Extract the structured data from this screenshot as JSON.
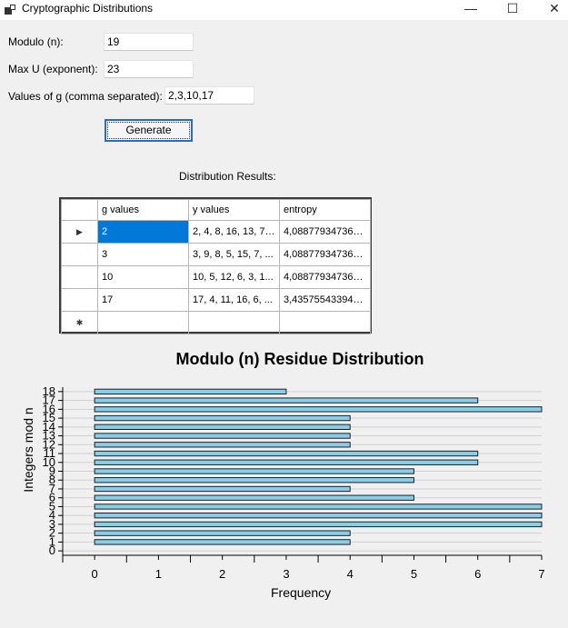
{
  "window": {
    "title": "Cryptographic Distributions",
    "minimize_glyph": "—",
    "maximize_glyph": "☐",
    "close_glyph": "✕"
  },
  "form": {
    "modulo_label": "Modulo (n):",
    "modulo_value": "19",
    "max_u_label": "Max U (exponent):",
    "max_u_value": "23",
    "g_label": "Values of g (comma separated):",
    "g_value": "2,3,10,17",
    "generate_label": "Generate",
    "results_label": "Distribution Results:"
  },
  "table": {
    "headers": [
      "g values",
      "y values",
      "entropy"
    ],
    "rows": [
      {
        "g": "2",
        "y": "2, 4, 8, 16, 13, 7,...",
        "entropy": "4,088779347361..."
      },
      {
        "g": "3",
        "y": "3, 9, 8, 5, 15, 7, ...",
        "entropy": "4,088779347361..."
      },
      {
        "g": "10",
        "y": "10, 5, 12, 6, 3, 1...",
        "entropy": "4,088779347361..."
      },
      {
        "g": "17",
        "y": "17, 4, 11, 16, 6, ...",
        "entropy": "3,435755433941..."
      }
    ],
    "current_row_glyph": "▶",
    "new_row_glyph": "✱"
  },
  "chart_data": {
    "type": "bar",
    "orientation": "horizontal",
    "title": "Modulo (n) Residue Distribution",
    "xlabel": "Frequency",
    "ylabel": "Integers mod n",
    "categories": [
      "0",
      "1",
      "2",
      "3",
      "4",
      "5",
      "6",
      "7",
      "8",
      "9",
      "10",
      "11",
      "12",
      "13",
      "14",
      "15",
      "16",
      "17",
      "18"
    ],
    "values": [
      0,
      4,
      4,
      7,
      7,
      7,
      5,
      4,
      5,
      5,
      6,
      6,
      4,
      4,
      4,
      4,
      7,
      6,
      3
    ],
    "xlim": [
      -0.5,
      7
    ],
    "xticks": [
      0,
      1,
      2,
      3,
      4,
      5,
      6,
      7
    ],
    "grid": true,
    "bar_color": "#87ceeb",
    "bar_edge_color": "#1f1f1f"
  }
}
